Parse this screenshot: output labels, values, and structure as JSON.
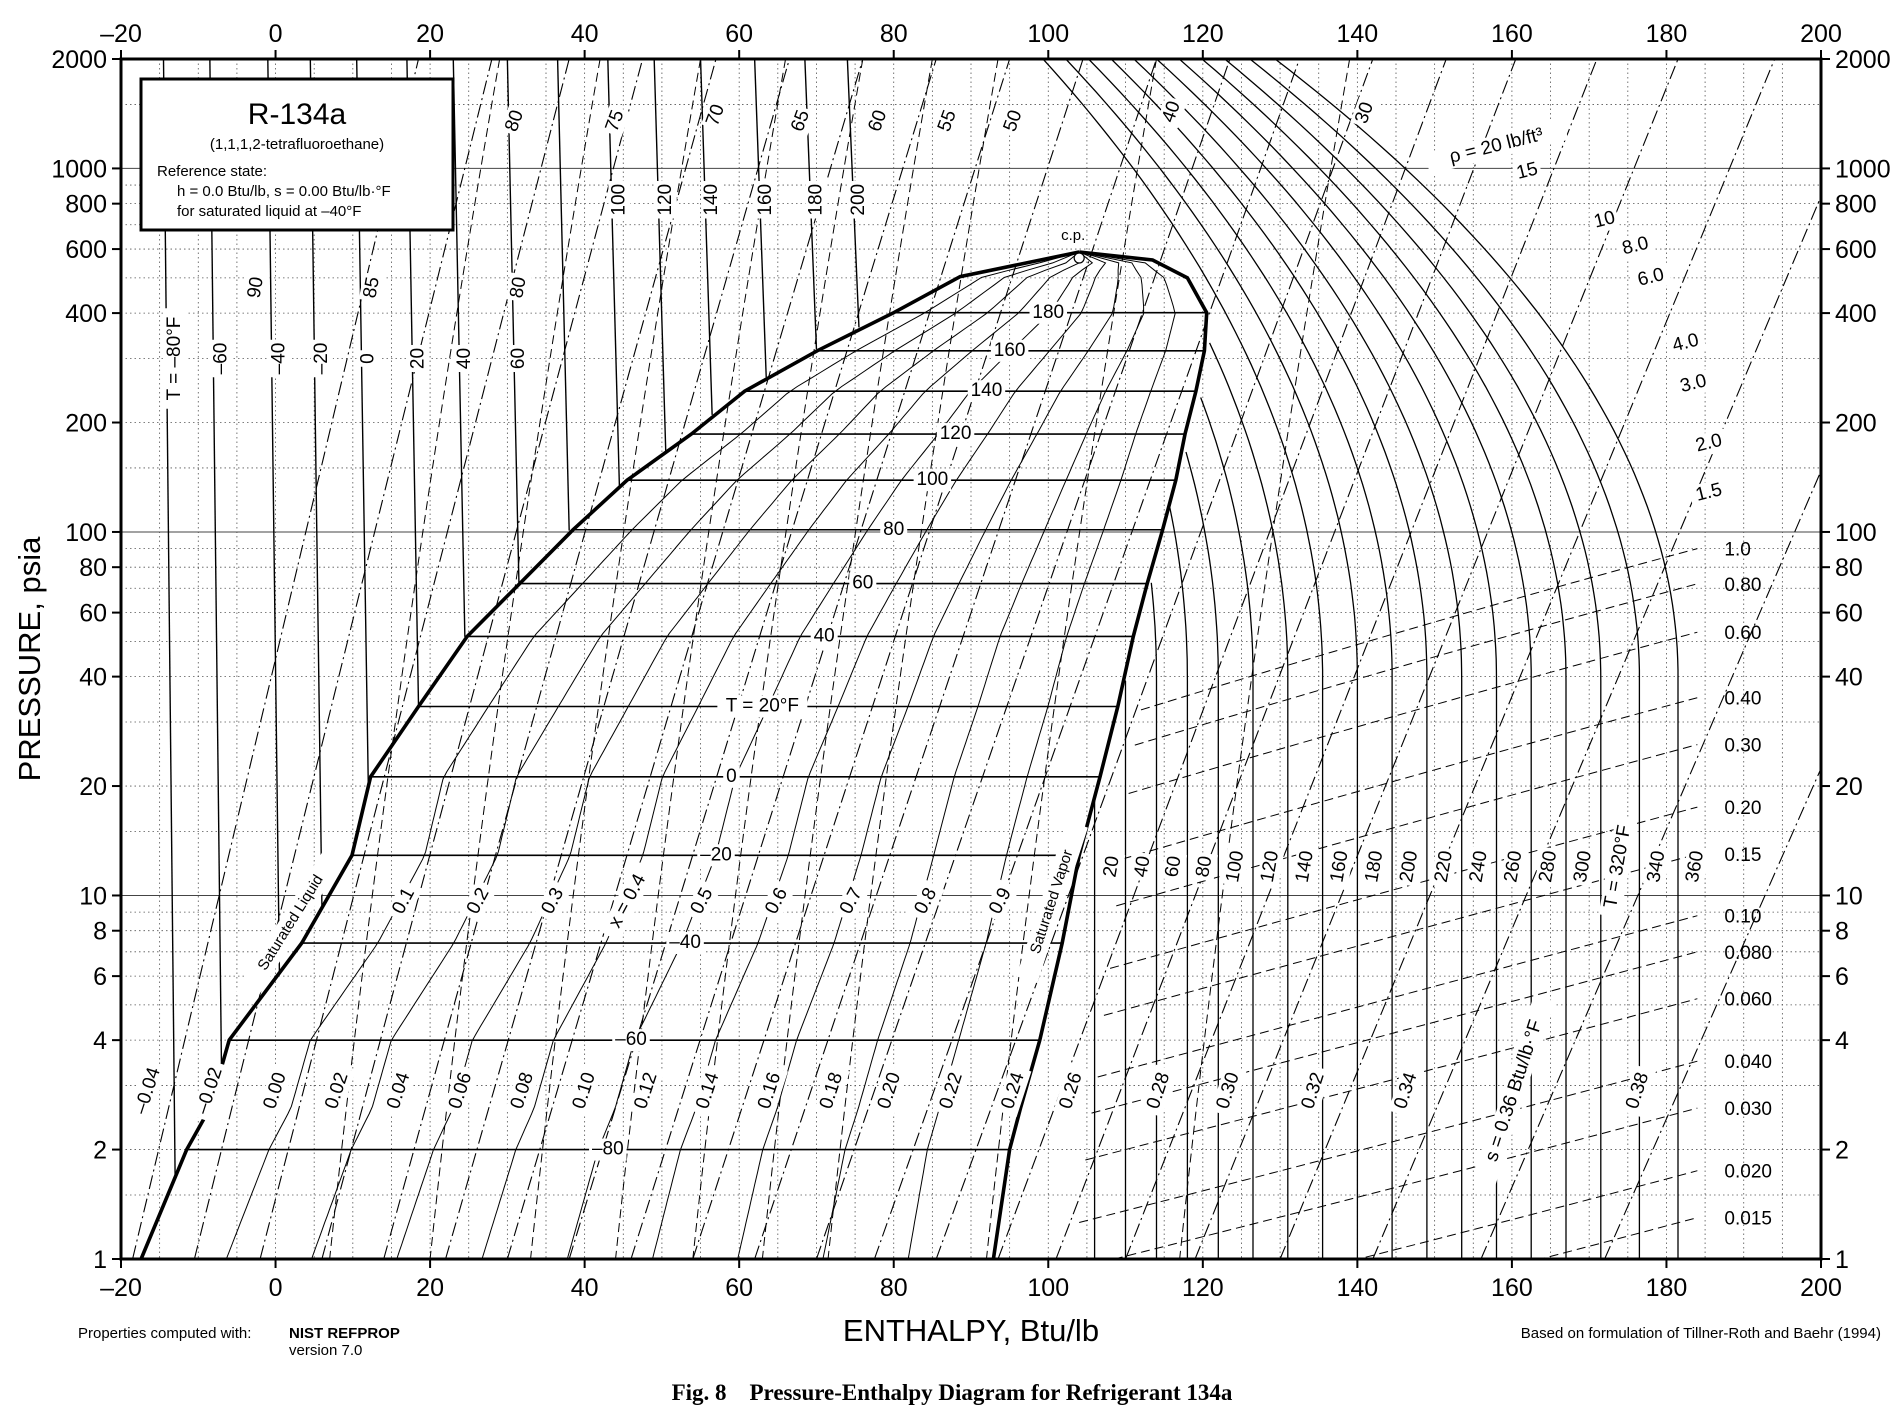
{
  "chart_data": {
    "type": "line",
    "title": "R-134a",
    "subtitle": "(1,1,1,2-tetrafluoroethane)",
    "reference_lines": [
      "Reference state:",
      "h = 0.0 Btu/lb,   s = 0.00 Btu/lb·°F",
      "for saturated liquid at –40°F"
    ],
    "xlabel": "ENTHALPY, Btu/lb",
    "ylabel": "PRESSURE, psia",
    "xlim": [
      -20,
      200
    ],
    "ylim": [
      1,
      2000
    ],
    "y_scale": "log",
    "x_ticks": [
      "–20",
      "0",
      "20",
      "40",
      "60",
      "80",
      "100",
      "120",
      "140",
      "160",
      "180",
      "200"
    ],
    "y_ticks": [
      {
        "v": 1,
        "t": "1"
      },
      {
        "v": 2,
        "t": "2"
      },
      {
        "v": 4,
        "t": "4"
      },
      {
        "v": 6,
        "t": "6"
      },
      {
        "v": 8,
        "t": "8"
      },
      {
        "v": 10,
        "t": "10"
      },
      {
        "v": 20,
        "t": "20"
      },
      {
        "v": 40,
        "t": "40"
      },
      {
        "v": 60,
        "t": "60"
      },
      {
        "v": 80,
        "t": "80"
      },
      {
        "v": 100,
        "t": "100"
      },
      {
        "v": 200,
        "t": "200"
      },
      {
        "v": 400,
        "t": "400"
      },
      {
        "v": 600,
        "t": "600"
      },
      {
        "v": 800,
        "t": "800"
      },
      {
        "v": 1000,
        "t": "1000"
      },
      {
        "v": 2000,
        "t": "2000"
      }
    ],
    "grid": true,
    "critical_point": {
      "h": 104,
      "p": 589,
      "label": "c.p."
    },
    "saturated_liquid": {
      "label": "Saturated Liquid",
      "points": [
        [
          -17.4,
          1
        ],
        [
          -11.5,
          2
        ],
        [
          -8.5,
          2.6
        ],
        [
          -6.0,
          4
        ],
        [
          3.4,
          7.4
        ],
        [
          9.9,
          12.9
        ],
        [
          12.3,
          21.2
        ],
        [
          18.5,
          33.1
        ],
        [
          24.8,
          51.6
        ],
        [
          31.6,
          72.1
        ],
        [
          38.5,
          101.4
        ],
        [
          45.5,
          138.8
        ],
        [
          53.8,
          185.9
        ],
        [
          60.7,
          243.9
        ],
        [
          70.1,
          315.0
        ],
        [
          80.0,
          400.9
        ],
        [
          88.6,
          504.0
        ],
        [
          104,
          589
        ]
      ]
    },
    "saturated_vapor": {
      "label": "Saturated Vapor",
      "points": [
        [
          104,
          589
        ],
        [
          113.5,
          560
        ],
        [
          118.0,
          500
        ],
        [
          120.5,
          400.9
        ],
        [
          120.2,
          315.0
        ],
        [
          119.1,
          243.9
        ],
        [
          117.7,
          185.9
        ],
        [
          116.5,
          138.8
        ],
        [
          114.8,
          101.4
        ],
        [
          112.8,
          72.1
        ],
        [
          111.0,
          51.6
        ],
        [
          109.0,
          33.1
        ],
        [
          106.7,
          21.2
        ],
        [
          104.0,
          12.9
        ],
        [
          101.8,
          7.4
        ],
        [
          98.9,
          4.0
        ],
        [
          96.4,
          2.6
        ],
        [
          95.0,
          2.0
        ],
        [
          92.9,
          1.0
        ]
      ]
    },
    "isotherms_two_phase": [
      {
        "label": "–80",
        "p": 2.0,
        "h_liq": -11.5,
        "h_vap": 95.0,
        "label_h": 43
      },
      {
        "label": "–60",
        "p": 4.0,
        "h_liq": -6.0,
        "h_vap": 98.9,
        "label_h": 46
      },
      {
        "label": "–40",
        "p": 7.4,
        "h_liq": 3.4,
        "h_vap": 101.8,
        "label_h": 53
      },
      {
        "label": "–20",
        "p": 12.9,
        "h_liq": 9.9,
        "h_vap": 104.0,
        "label_h": 57
      },
      {
        "label": "0",
        "p": 21.2,
        "h_liq": 12.3,
        "h_vap": 106.7,
        "label_h": 59
      },
      {
        "label": "T = 20°F",
        "p": 33.1,
        "h_liq": 18.5,
        "h_vap": 109.0,
        "label_h": 63
      },
      {
        "label": "40",
        "p": 51.6,
        "h_liq": 24.8,
        "h_vap": 111.0,
        "label_h": 71
      },
      {
        "label": "60",
        "p": 72.1,
        "h_liq": 31.6,
        "h_vap": 112.8,
        "label_h": 76
      },
      {
        "label": "80",
        "p": 101.4,
        "h_liq": 38.5,
        "h_vap": 114.8,
        "label_h": 80
      },
      {
        "label": "100",
        "p": 138.8,
        "h_liq": 45.5,
        "h_vap": 116.5,
        "label_h": 85
      },
      {
        "label": "120",
        "p": 185.9,
        "h_liq": 53.8,
        "h_vap": 117.7,
        "label_h": 88
      },
      {
        "label": "140",
        "p": 243.9,
        "h_liq": 60.7,
        "h_vap": 119.1,
        "label_h": 92
      },
      {
        "label": "160",
        "p": 315.0,
        "h_liq": 70.1,
        "h_vap": 120.2,
        "label_h": 95
      },
      {
        "label": "180",
        "p": 400.9,
        "h_liq": 80.0,
        "h_vap": 120.5,
        "label_h": 100
      }
    ],
    "isotherms_liquid_labels": [
      {
        "t": "T = –80°F",
        "h": -13
      },
      {
        "t": "–60",
        "h": -7
      },
      {
        "t": "–40",
        "h": 0.5
      },
      {
        "t": "–20",
        "h": 6
      },
      {
        "t": "0",
        "h": 12
      },
      {
        "t": "20",
        "h": 18.5
      },
      {
        "t": "40",
        "h": 24.5
      },
      {
        "t": "60",
        "h": 31.5
      },
      {
        "t": "80",
        "h": 31.5
      },
      {
        "t": "85",
        "h": 12.5
      },
      {
        "t": "90",
        "h": -2.5
      },
      {
        "t": "100",
        "h": 44.5
      },
      {
        "t": "120",
        "h": 50.5
      },
      {
        "t": "140",
        "h": 56.5
      },
      {
        "t": "160",
        "h": 63.5
      },
      {
        "t": "180",
        "h": 70
      },
      {
        "t": "200",
        "h": 75.5
      }
    ],
    "isotherms_vapor_labels": [
      {
        "t": "20",
        "h": 108
      },
      {
        "t": "40",
        "h": 112
      },
      {
        "t": "60",
        "h": 116
      },
      {
        "t": "80",
        "h": 120
      },
      {
        "t": "100",
        "h": 124
      },
      {
        "t": "120",
        "h": 128.5
      },
      {
        "t": "140",
        "h": 133
      },
      {
        "t": "160",
        "h": 137.5
      },
      {
        "t": "180",
        "h": 142
      },
      {
        "t": "200",
        "h": 146.5
      },
      {
        "t": "220",
        "h": 151
      },
      {
        "t": "240",
        "h": 155.5
      },
      {
        "t": "260",
        "h": 160
      },
      {
        "t": "280",
        "h": 164.5
      },
      {
        "t": "300",
        "h": 169
      },
      {
        "t": "T = 320°F",
        "h": 173.5
      },
      {
        "t": "340",
        "h": 178.5
      },
      {
        "t": "360",
        "h": 183.5
      }
    ],
    "vapor_isotherms": [
      108,
      112,
      116,
      120,
      124,
      128.5,
      133,
      137.5,
      142,
      146.5,
      151,
      155.5,
      160,
      164.5,
      169,
      173.5,
      178.5,
      183.5
    ],
    "quality_lines": [
      {
        "label": "0.1",
        "x": 0.1
      },
      {
        "label": "0.2",
        "x": 0.2
      },
      {
        "label": "0.3",
        "x": 0.3
      },
      {
        "label": "x = 0.4",
        "x": 0.4
      },
      {
        "label": "0.5",
        "x": 0.5
      },
      {
        "label": "0.6",
        "x": 0.6
      },
      {
        "label": "0.7",
        "x": 0.7
      },
      {
        "label": "0.8",
        "x": 0.8
      },
      {
        "label": "0.9",
        "x": 0.9
      }
    ],
    "entropy_labels": [
      {
        "t": "–0.04",
        "h": -16.5
      },
      {
        "t": "–0.02",
        "h": -8.5
      },
      {
        "t": "0.00",
        "h": 0
      },
      {
        "t": "0.02",
        "h": 8
      },
      {
        "t": "0.04",
        "h": 16
      },
      {
        "t": "0.06",
        "h": 24
      },
      {
        "t": "0.08",
        "h": 32
      },
      {
        "t": "0.10",
        "h": 40
      },
      {
        "t": "0.12",
        "h": 48
      },
      {
        "t": "0.14",
        "h": 56
      },
      {
        "t": "0.16",
        "h": 64
      },
      {
        "t": "0.18",
        "h": 72
      },
      {
        "t": "0.20",
        "h": 79.5
      },
      {
        "t": "0.22",
        "h": 87.5
      },
      {
        "t": "0.24",
        "h": 95.5
      },
      {
        "t": "0.26",
        "h": 103
      },
      {
        "t": "0.28",
        "h": 112
      },
      {
        "t": "0.30",
        "h": 121
      },
      {
        "t": "0.32",
        "h": 132
      },
      {
        "t": "0.34",
        "h": 144
      },
      {
        "t": "s = 0.36 Btu/lb·°F",
        "h": 158
      },
      {
        "t": "0.38",
        "h": 174
      }
    ],
    "density_labels_right": [
      {
        "t": "1.0",
        "p": 90
      },
      {
        "t": "0.80",
        "p": 72
      },
      {
        "t": "0.60",
        "p": 53
      },
      {
        "t": "0.40",
        "p": 35
      },
      {
        "t": "0.30",
        "p": 26
      },
      {
        "t": "0.20",
        "p": 17.5
      },
      {
        "t": "0.15",
        "p": 13
      },
      {
        "t": "0.10",
        "p": 8.8
      },
      {
        "t": "0.080",
        "p": 7.0
      },
      {
        "t": "0.060",
        "p": 5.2
      },
      {
        "t": "0.040",
        "p": 3.5
      },
      {
        "t": "0.030",
        "p": 2.6
      },
      {
        "t": "0.020",
        "p": 1.75
      },
      {
        "t": "0.015",
        "p": 1.3
      }
    ],
    "density_labels_upper": [
      {
        "t": "ρ = 20 lb/ft³",
        "h": 158,
        "p": 1150
      },
      {
        "t": "15",
        "h": 162,
        "p": 980
      },
      {
        "t": "10",
        "h": 172,
        "p": 720
      },
      {
        "t": "8.0",
        "h": 176,
        "p": 610
      },
      {
        "t": "6.0",
        "h": 178,
        "p": 500
      },
      {
        "t": "4.0",
        "h": 182.5,
        "p": 330
      },
      {
        "t": "3.0",
        "h": 183.5,
        "p": 255
      },
      {
        "t": "2.0",
        "h": 185.5,
        "p": 175
      },
      {
        "t": "1.5",
        "h": 185.5,
        "p": 128
      }
    ],
    "density_labels_liquid": [
      {
        "t": "80",
        "h": 31,
        "p": 1350
      },
      {
        "t": "75",
        "h": 44,
        "p": 1350
      },
      {
        "t": "70",
        "h": 57,
        "p": 1400
      },
      {
        "t": "65",
        "h": 68,
        "p": 1350
      },
      {
        "t": "60",
        "h": 78,
        "p": 1350
      },
      {
        "t": "55",
        "h": 87,
        "p": 1350
      },
      {
        "t": "50",
        "h": 95.5,
        "p": 1350
      },
      {
        "t": "40",
        "h": 116,
        "p": 1430
      },
      {
        "t": "30",
        "h": 141,
        "p": 1420
      }
    ],
    "footer_left": "Properties computed with:",
    "footer_left_bold": "NIST REFPROP",
    "footer_left_version": "version 7.0",
    "footer_right": "Based on formulation of Tillner-Roth and Baehr (1994)",
    "caption": "Fig. 8    Pressure-Enthalpy Diagram for Refrigerant 134a"
  }
}
